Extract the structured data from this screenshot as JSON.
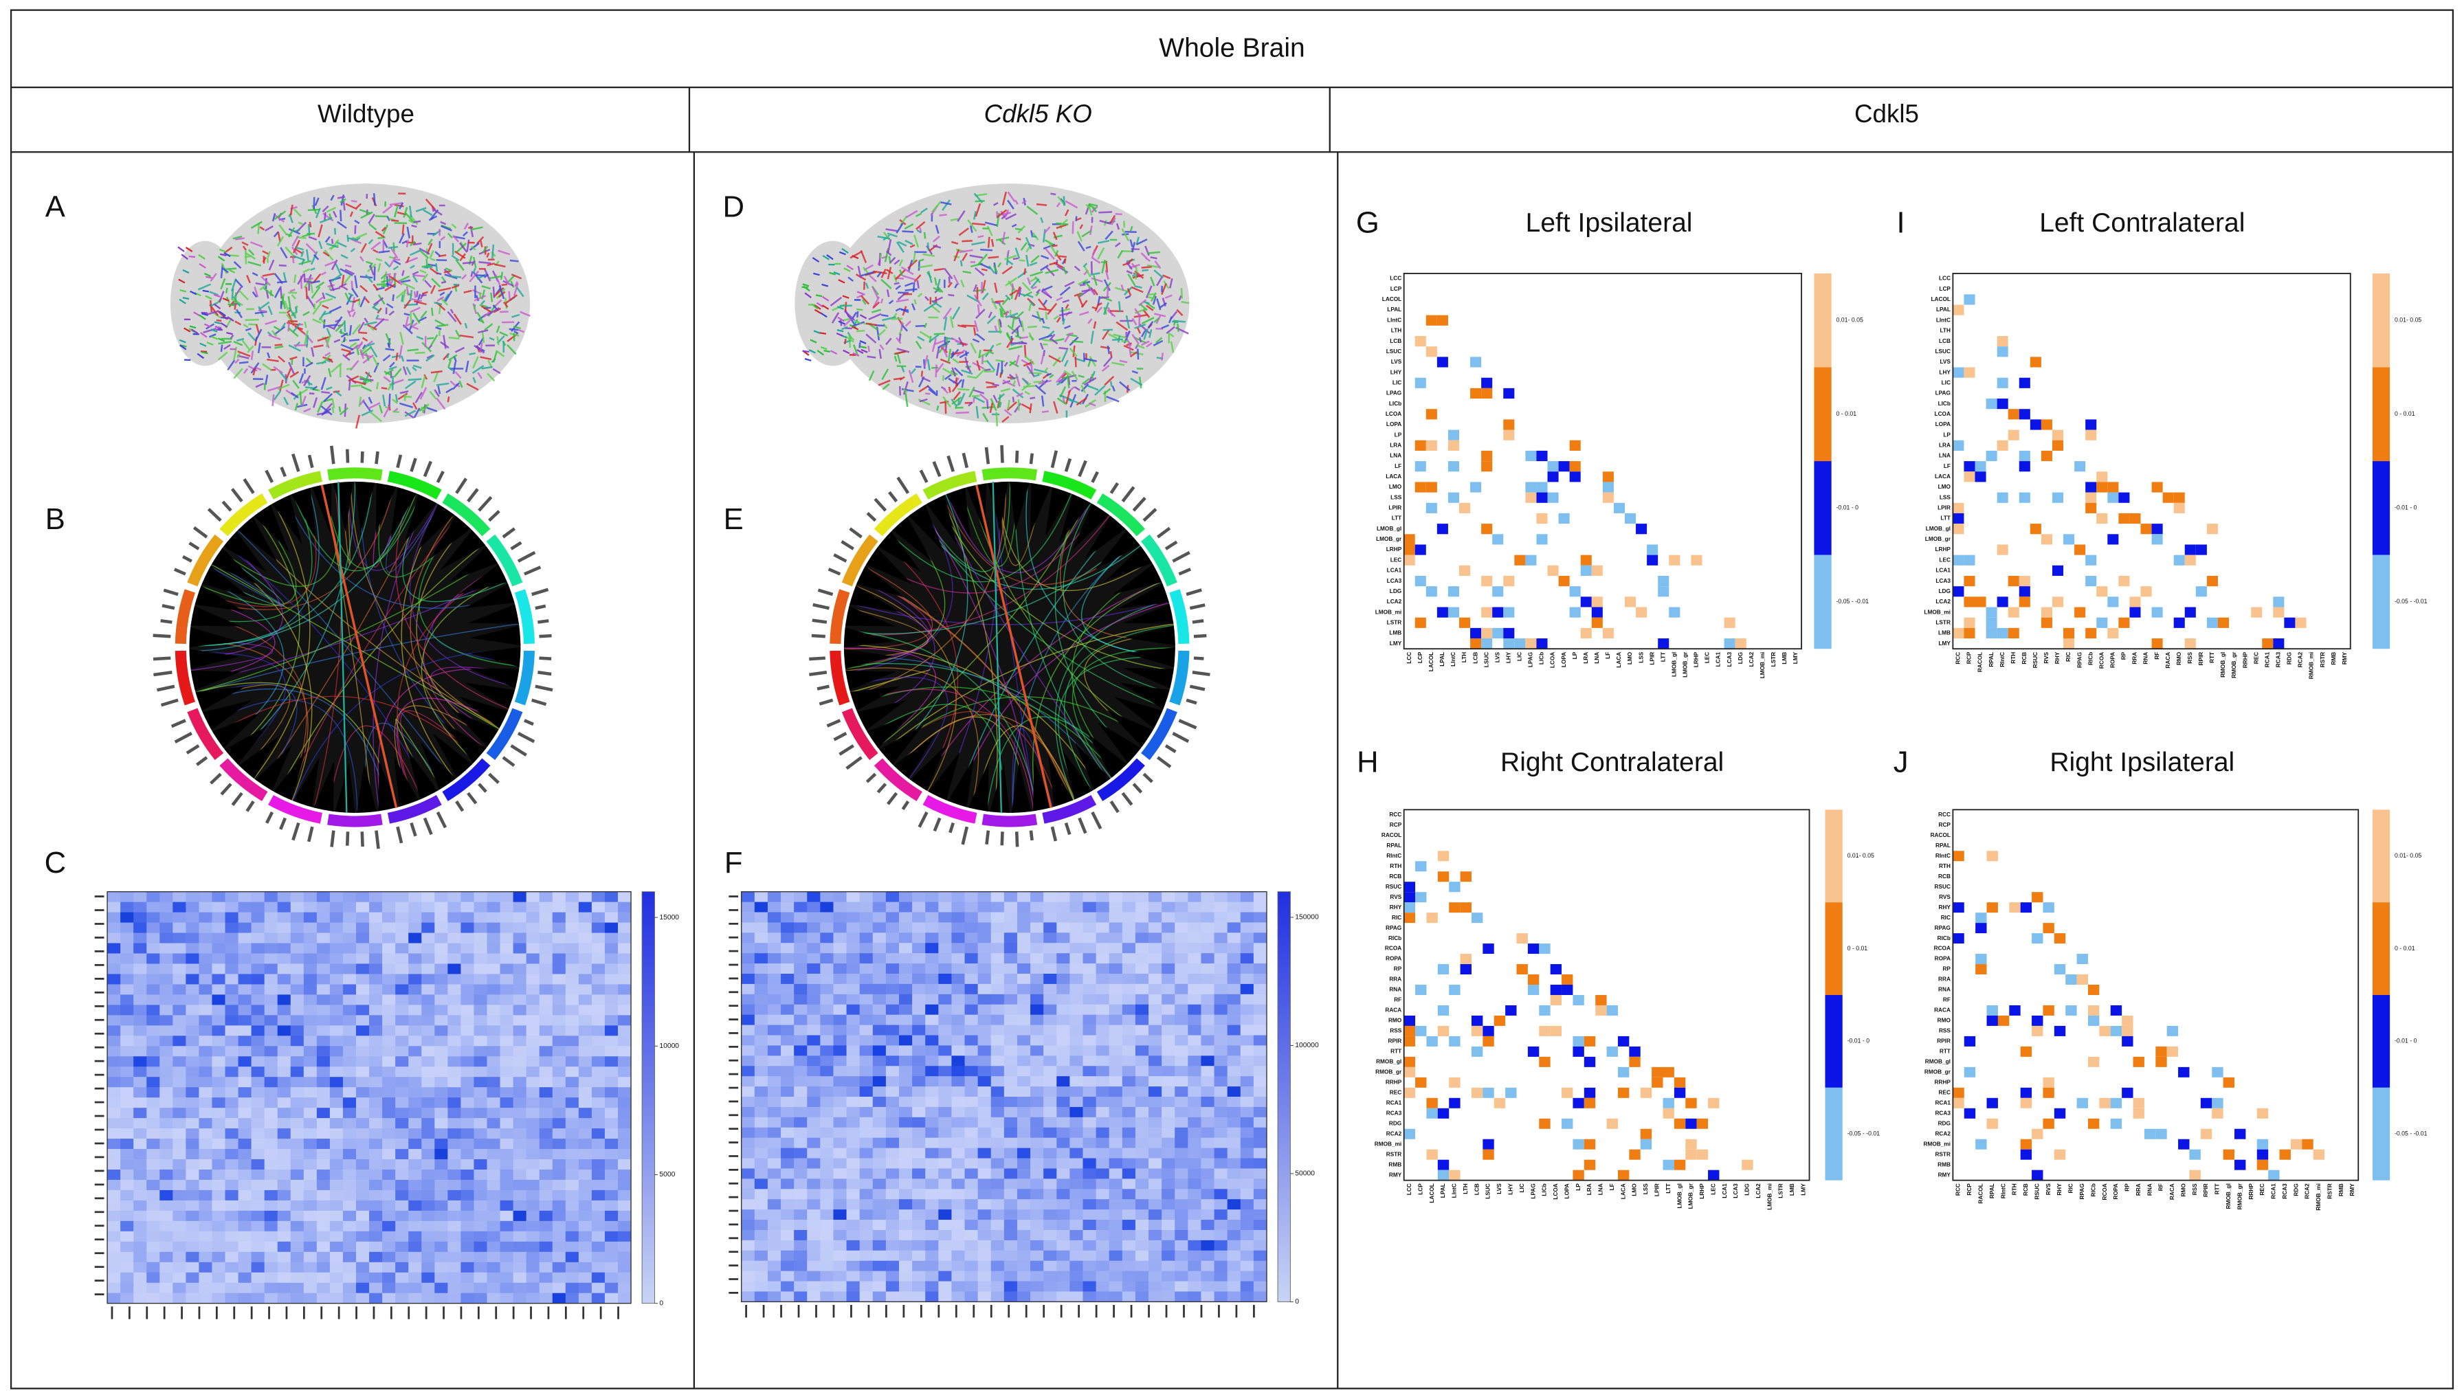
{
  "header": {
    "title": "Whole Brain"
  },
  "columns": [
    "Wildtype",
    "Cdkl5 KO",
    "Cdkl5"
  ],
  "panel_letters": [
    "A",
    "B",
    "C",
    "D",
    "E",
    "F"
  ],
  "matrices": [
    {
      "letter": "G",
      "title": "Left Ipsilateral"
    },
    {
      "letter": "I",
      "title": "Left Contralateral"
    },
    {
      "letter": "H",
      "title": "Right Contralateral"
    },
    {
      "letter": "J",
      "title": "Right Ipsilateral"
    }
  ],
  "significance_legend": [
    "0.01- 0.05",
    "0 - 0.01",
    "-0.01 - 0",
    "-0.05 - -0.01"
  ],
  "heatmap_scales": [
    {
      "lim": [
        0,
        16000
      ],
      "ticks": [
        15000,
        10000,
        5000,
        0
      ]
    },
    {
      "lim": [
        0,
        160000
      ],
      "ticks": [
        150000,
        100000,
        50000,
        0
      ]
    }
  ],
  "left_regions": [
    "LCC",
    "LCP",
    "LACOL",
    "LPAL",
    "LIntC",
    "LTH",
    "LCB",
    "LSUC",
    "LVS",
    "LHY",
    "LIC",
    "LPAG",
    "LICb",
    "LCOA",
    "LOPA",
    "LP",
    "LRA",
    "LNA",
    "LF",
    "LACA",
    "LMO",
    "LSS",
    "LPIR",
    "LTT",
    "LMOB_gl",
    "LMOB_gr",
    "LRHP",
    "LEC",
    "LCA1",
    "LCA3",
    "LDG",
    "LCA2",
    "LMOB_mi",
    "LSTR",
    "LMB",
    "LMY"
  ],
  "right_regions": [
    "RCC",
    "RCP",
    "RACOL",
    "RPAL",
    "RIntC",
    "RTH",
    "RCB",
    "RSUC",
    "RVS",
    "RHY",
    "RIC",
    "RPAG",
    "RICb",
    "RCOA",
    "ROPA",
    "RP",
    "RRA",
    "RNA",
    "RF",
    "RACA",
    "RMO",
    "RSS",
    "RPIR",
    "RTT",
    "RMOB_gl",
    "RMOB_gr",
    "RRHP",
    "REC",
    "RCA1",
    "RCA3",
    "RDG",
    "RCA2",
    "RMOB_mi",
    "RSTR",
    "RMB",
    "RMY"
  ]
}
